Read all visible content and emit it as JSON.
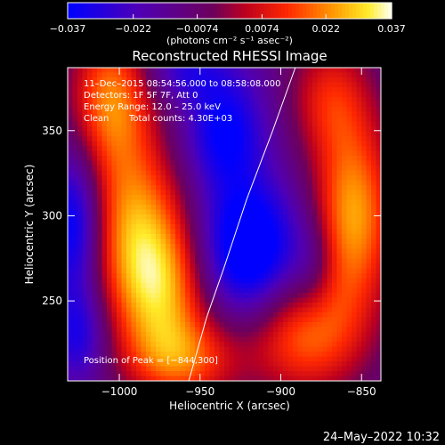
{
  "chart_data": {
    "type": "heatmap",
    "title": "Reconstructed RHESSI Image",
    "xlabel": "Heliocentric X (arcsec)",
    "ylabel": "Heliocentric Y (arcsec)",
    "xlim": [
      -1032,
      -838
    ],
    "ylim": [
      203,
      387
    ],
    "x_ticks": [
      -1000,
      -950,
      -900,
      -850
    ],
    "x_tick_labels": [
      "−1000",
      "−950",
      "−900",
      "−850"
    ],
    "y_ticks": [
      250,
      300,
      350
    ],
    "y_tick_labels": [
      "250",
      "300",
      "350"
    ],
    "colorbar": {
      "range": [
        -0.037,
        0.037
      ],
      "ticks": [
        -0.037,
        -0.022,
        -0.0074,
        0.0074,
        0.022,
        0.037
      ],
      "tick_labels": [
        "−0.037",
        "−0.022",
        "−0.0074",
        "0.0074",
        "0.022",
        "0.037"
      ],
      "unit_label": "(photons cm⁻² s⁻¹ asec⁻²)",
      "colormap": "rhessi_hot_blue"
    },
    "annotations": {
      "time_range": "11–Dec–2015 08:54:56.000 to 08:58:08.000",
      "detectors": "Detectors: 1F 5F 7F, Att 0",
      "energy_range": "Energy Range: 12.0 – 25.0 keV",
      "clean": "Clean",
      "total_counts": "Total counts: 4.30E+03",
      "peak": "Position of Peak = [−844,300]"
    },
    "limb_line": {
      "x": [
        -957,
        -946,
        -935,
        -921,
        -905,
        -891
      ],
      "y": [
        203,
        240,
        270,
        310,
        350,
        387
      ]
    },
    "image_field": {
      "blobs": [
        {
          "x": -1005,
          "y": 370,
          "sx": 18,
          "sy": 30,
          "amp": 0.032
        },
        {
          "x": -990,
          "y": 300,
          "sx": 22,
          "sy": 35,
          "amp": 0.03
        },
        {
          "x": -975,
          "y": 255,
          "sx": 22,
          "sy": 30,
          "amp": 0.034
        },
        {
          "x": -960,
          "y": 215,
          "sx": 25,
          "sy": 18,
          "amp": 0.025
        },
        {
          "x": -870,
          "y": 370,
          "sx": 18,
          "sy": 25,
          "amp": 0.02
        },
        {
          "x": -855,
          "y": 300,
          "sx": 18,
          "sy": 40,
          "amp": 0.037
        },
        {
          "x": -885,
          "y": 230,
          "sx": 25,
          "sy": 25,
          "amp": 0.03
        },
        {
          "x": -920,
          "y": 280,
          "sx": 22,
          "sy": 28,
          "amp": -0.037
        },
        {
          "x": -935,
          "y": 350,
          "sx": 18,
          "sy": 25,
          "amp": -0.026
        },
        {
          "x": -1028,
          "y": 295,
          "sx": 12,
          "sy": 30,
          "amp": -0.03
        },
        {
          "x": -1025,
          "y": 230,
          "sx": 12,
          "sy": 20,
          "amp": -0.02
        },
        {
          "x": -960,
          "y": 385,
          "sx": 18,
          "sy": 12,
          "amp": -0.015
        },
        {
          "x": -880,
          "y": 270,
          "sx": 10,
          "sy": 20,
          "amp": -0.01
        }
      ],
      "base": -0.012
    }
  },
  "footer": {
    "timestamp": "24–May–2022 10:32"
  }
}
